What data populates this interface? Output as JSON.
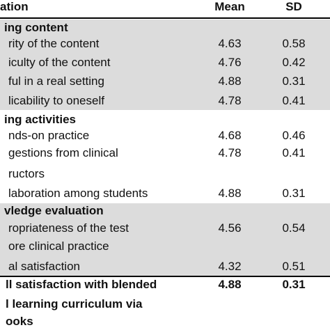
{
  "header": {
    "item": "ation",
    "mean": "Mean",
    "sd": "SD"
  },
  "sections": [
    {
      "title": "ing content",
      "items": [
        {
          "label": [
            "rity of the content"
          ],
          "mean": "4.63",
          "sd": "0.58"
        },
        {
          "label": [
            "iculty of the content"
          ],
          "mean": "4.76",
          "sd": "0.42"
        },
        {
          "label": [
            "ful in a real setting"
          ],
          "mean": "4.88",
          "sd": "0.31"
        },
        {
          "label": [
            "licability to oneself"
          ],
          "mean": "4.78",
          "sd": "0.41"
        }
      ]
    },
    {
      "title": "ing activities",
      "items": [
        {
          "label": [
            "nds-on practice"
          ],
          "mean": "4.68",
          "sd": "0.46"
        },
        {
          "label": [
            "gestions from clinical",
            "ructors"
          ],
          "mean": "4.78",
          "sd": "0.41"
        },
        {
          "label": [
            "laboration among students"
          ],
          "mean": "4.88",
          "sd": "0.31"
        }
      ]
    },
    {
      "title": "vledge evaluation",
      "items": [
        {
          "label": [
            "ropriateness of the test",
            "ore clinical practice"
          ],
          "mean": "4.56",
          "sd": "0.54"
        },
        {
          "label": [
            "al satisfaction"
          ],
          "mean": "4.32",
          "sd": "0.51"
        }
      ]
    }
  ],
  "overall": {
    "label": [
      "ll satisfaction with blended",
      "l learning curriculum via",
      "ooks"
    ],
    "mean": "4.88",
    "sd": "0.31"
  }
}
